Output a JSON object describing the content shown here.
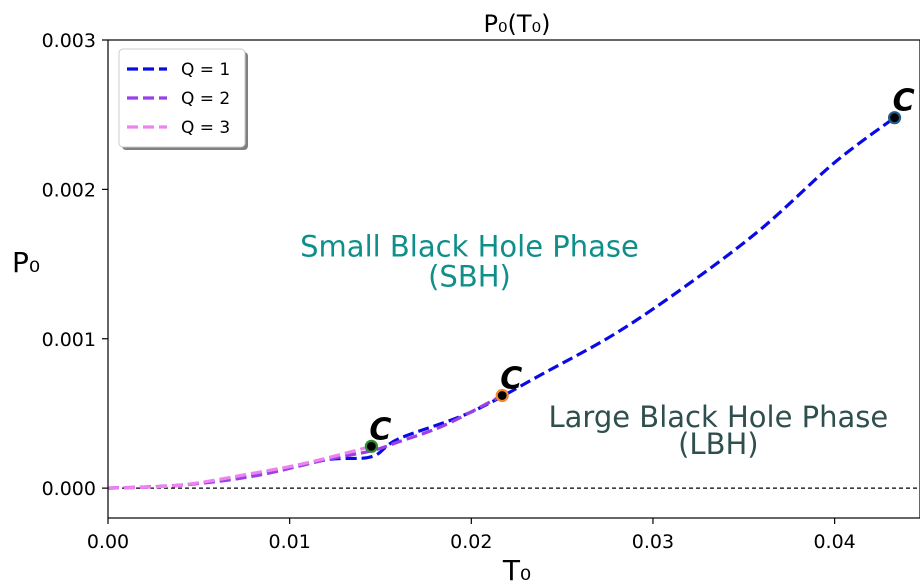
{
  "chart_data": {
    "type": "line",
    "title": "P₀(T₀)",
    "xlabel": "T₀",
    "ylabel": "P₀",
    "xlim": [
      0.0,
      0.0447
    ],
    "ylim": [
      -0.0002,
      0.003
    ],
    "x_ticks": [
      "0.00",
      "0.01",
      "0.02",
      "0.03",
      "0.04"
    ],
    "y_ticks": [
      "0.000",
      "0.001",
      "0.002",
      "0.003"
    ],
    "grid": false,
    "reference_line": {
      "y": 0.0,
      "style": "dashed",
      "color": "#000000"
    },
    "legend": {
      "placement": "upper-left",
      "entries": [
        "Q = 1",
        "Q = 2",
        "Q = 3"
      ]
    },
    "series": [
      {
        "name": "Q = 1",
        "color": "#0a0ae6",
        "style": "dashed",
        "x": [
          0.0,
          0.004,
          0.008,
          0.012,
          0.0145,
          0.016,
          0.02,
          0.024,
          0.028,
          0.032,
          0.036,
          0.04,
          0.0433
        ],
        "y": [
          0.0,
          2e-05,
          9e-05,
          0.00019,
          0.00021,
          0.00033,
          0.00051,
          0.00077,
          0.00104,
          0.00137,
          0.00174,
          0.00218,
          0.00248
        ],
        "critical_point": {
          "x": 0.0433,
          "y": 0.00248,
          "label": "C",
          "fill": "#1f5c8a"
        }
      },
      {
        "name": "Q = 2",
        "color": "#9b3fe6",
        "style": "dashed",
        "x": [
          0.0,
          0.004,
          0.008,
          0.012,
          0.0145,
          0.016,
          0.0185,
          0.0217
        ],
        "y": [
          0.0,
          2e-05,
          8e-05,
          0.00019,
          0.00025,
          0.00031,
          0.00042,
          0.00062
        ],
        "critical_point": {
          "x": 0.0217,
          "y": 0.00062,
          "label": "C",
          "fill": "#f08a2a"
        }
      },
      {
        "name": "Q = 3",
        "color": "#ee82ee",
        "style": "dashed",
        "x": [
          0.0,
          0.004,
          0.008,
          0.011,
          0.0145
        ],
        "y": [
          0.0,
          2e-05,
          0.0001,
          0.00017,
          0.00028
        ],
        "critical_point": {
          "x": 0.0145,
          "y": 0.00028,
          "label": "C",
          "fill": "#2e8b2e"
        }
      }
    ],
    "annotations": [
      {
        "text": "Small Black Hole Phase",
        "x": 0.0199,
        "y": 0.00155,
        "color": "#0f8f8a"
      },
      {
        "text": "(SBH)",
        "x": 0.0199,
        "y": 0.00135,
        "color": "#0f8f8a"
      },
      {
        "text": "Large Black Hole Phase",
        "x": 0.0336,
        "y": 0.00041,
        "color": "#2f4f4f"
      },
      {
        "text": "(LBH)",
        "x": 0.0336,
        "y": 0.00023,
        "color": "#2f4f4f"
      }
    ]
  }
}
